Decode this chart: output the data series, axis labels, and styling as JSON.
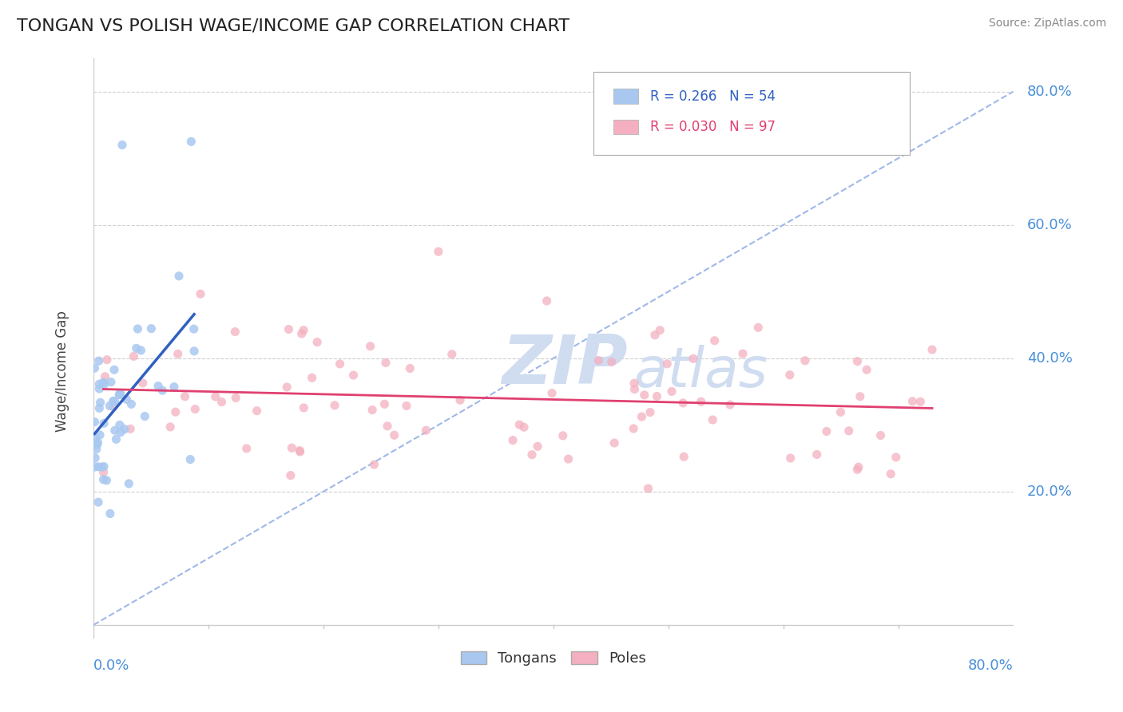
{
  "title": "TONGAN VS POLISH WAGE/INCOME GAP CORRELATION CHART",
  "source_text": "Source: ZipAtlas.com",
  "xmin": 0.0,
  "xmax": 0.8,
  "ymin": -0.02,
  "ymax": 0.85,
  "tongan_color": "#a8c8f0",
  "pole_color": "#f4b0c0",
  "tongan_line_color": "#3060c0",
  "pole_line_color": "#e04070",
  "ref_line_color": "#a0b8e8",
  "watermark_zip": "ZIP",
  "watermark_atlas": "atlas",
  "watermark_color": "#d0dcf0",
  "ylabel_label": "Wage/Income Gap",
  "background_color": "#ffffff",
  "grid_color": "#d0d0d0",
  "axis_color": "#cccccc",
  "tick_color": "#4a90d9",
  "legend_tongan_text": "R = 0.266   N = 54",
  "legend_pole_text": "R = 0.030   N = 97",
  "yticks": [
    0.2,
    0.4,
    0.6,
    0.8
  ],
  "ytick_labels": [
    "20.0%",
    "40.0%",
    "60.0%",
    "80.0%"
  ],
  "seed": 42
}
